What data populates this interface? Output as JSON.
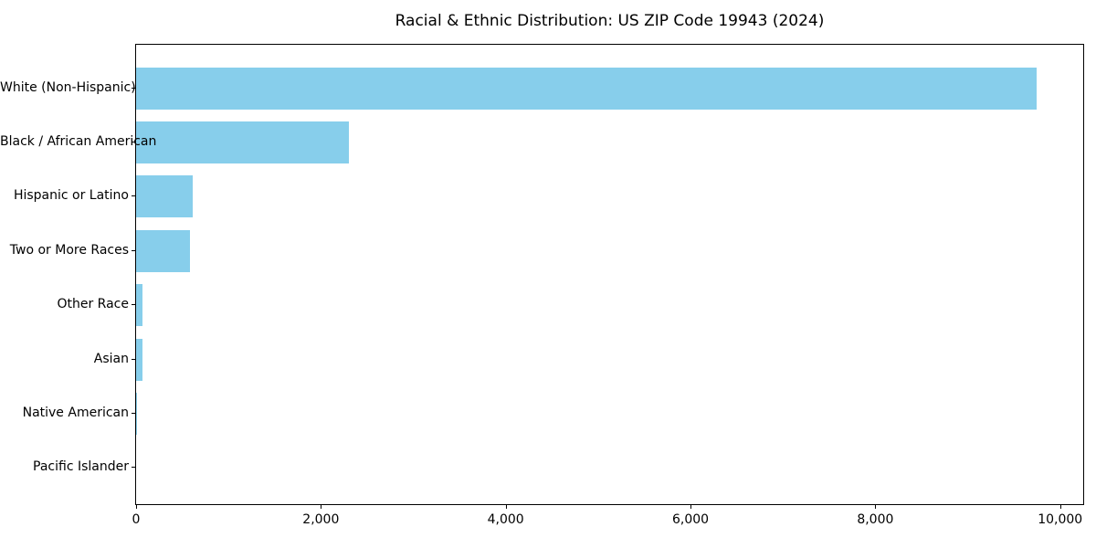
{
  "figure": {
    "background": "#ffffff"
  },
  "chart_data": {
    "type": "bar",
    "orientation": "horizontal",
    "title": "Racial & Ethnic Distribution: US ZIP Code 19943 (2024)",
    "categories": [
      "White (Non-Hispanic)",
      "Black / African American",
      "Hispanic or Latino",
      "Two or More Races",
      "Other Race",
      "Asian",
      "Native American",
      "Pacific Islander"
    ],
    "values": [
      9750,
      2300,
      615,
      585,
      70,
      72,
      10,
      0
    ],
    "xlabel": "",
    "ylabel": "",
    "xlim": [
      0,
      10250
    ],
    "xticks": [
      0,
      2000,
      4000,
      6000,
      8000,
      10000
    ],
    "xtick_labels": [
      "0",
      "2,000",
      "4,000",
      "6,000",
      "8,000",
      "10,000"
    ],
    "bar_color": "#87CEEB",
    "axis_color": "#000000",
    "text_color": "#000000",
    "grid": false,
    "legend": null
  }
}
